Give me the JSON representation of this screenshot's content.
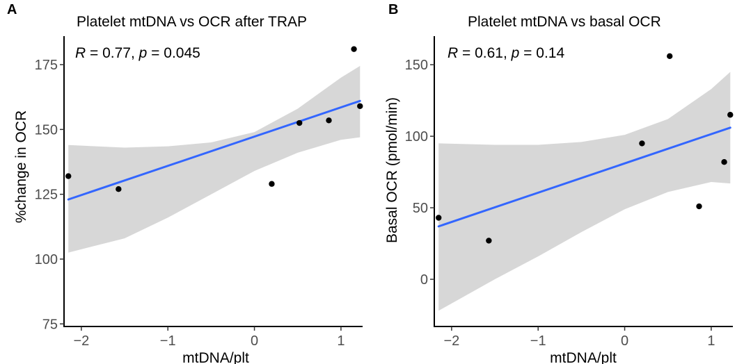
{
  "chart_data": [
    {
      "type": "scatter",
      "panel_label": "A",
      "title": "Platelet mtDNA vs OCR after TRAP",
      "xlabel": "mtDNA/plt",
      "ylabel": "%change in OCR",
      "xlim": [
        -2.2,
        1.25
      ],
      "ylim": [
        74,
        186
      ],
      "xticks": [
        -2,
        -1,
        0,
        1
      ],
      "xtick_labels": [
        "−2",
        "−1",
        "0",
        "1"
      ],
      "yticks": [
        75,
        100,
        125,
        150,
        175
      ],
      "ytick_labels": [
        "75",
        "100",
        "125",
        "150",
        "175"
      ],
      "grid": false,
      "stats": {
        "r_symbol": "R",
        "r_text": " = 0.77, ",
        "p_symbol": "p",
        "p_text": " = 0.045"
      },
      "points": [
        {
          "x": -2.15,
          "y": 132
        },
        {
          "x": -1.57,
          "y": 127
        },
        {
          "x": 0.2,
          "y": 129
        },
        {
          "x": 0.52,
          "y": 152.5
        },
        {
          "x": 0.86,
          "y": 153.5
        },
        {
          "x": 1.15,
          "y": 181
        },
        {
          "x": 1.22,
          "y": 159
        }
      ],
      "fit_line": {
        "x": [
          -2.15,
          1.22
        ],
        "y": [
          123,
          161
        ]
      },
      "confidence_band": {
        "x": [
          -2.15,
          -1.5,
          -1.0,
          -0.5,
          0,
          0.5,
          1.0,
          1.22
        ],
        "upper": [
          144,
          143,
          143.5,
          145,
          149,
          158,
          170,
          174.5
        ],
        "lower": [
          102.5,
          108,
          116,
          125,
          134,
          141,
          146,
          147
        ]
      },
      "colors": {
        "line": "#3366ff",
        "band": "#d3d3d3",
        "points": "#000000"
      }
    },
    {
      "type": "scatter",
      "panel_label": "B",
      "title": "Platelet mtDNA vs basal OCR",
      "xlabel": "mtDNA/plt",
      "ylabel": "Basal OCR (pmol/min)",
      "xlim": [
        -2.2,
        1.25
      ],
      "ylim": [
        -33,
        170
      ],
      "xticks": [
        -2,
        -1,
        0,
        1
      ],
      "xtick_labels": [
        "−2",
        "−1",
        "0",
        "1"
      ],
      "yticks": [
        0,
        50,
        100,
        150
      ],
      "ytick_labels": [
        "0",
        "50",
        "100",
        "150"
      ],
      "grid": false,
      "stats": {
        "r_symbol": "R",
        "r_text": " = 0.61, ",
        "p_symbol": "p",
        "p_text": " = 0.14"
      },
      "points": [
        {
          "x": -2.15,
          "y": 43
        },
        {
          "x": -1.57,
          "y": 27
        },
        {
          "x": 0.2,
          "y": 95
        },
        {
          "x": 0.52,
          "y": 156
        },
        {
          "x": 0.86,
          "y": 51
        },
        {
          "x": 1.15,
          "y": 82
        },
        {
          "x": 1.22,
          "y": 115
        }
      ],
      "fit_line": {
        "x": [
          -2.15,
          1.22
        ],
        "y": [
          37,
          106
        ]
      },
      "confidence_band": {
        "x": [
          -2.15,
          -1.5,
          -1.0,
          -0.5,
          0,
          0.5,
          1.0,
          1.22
        ],
        "upper": [
          95,
          94,
          94,
          96,
          101,
          112,
          133,
          145
        ],
        "lower": [
          -22,
          0,
          16,
          33,
          49,
          61,
          68,
          67
        ]
      },
      "colors": {
        "line": "#3366ff",
        "band": "#d3d3d3",
        "points": "#000000"
      }
    }
  ]
}
